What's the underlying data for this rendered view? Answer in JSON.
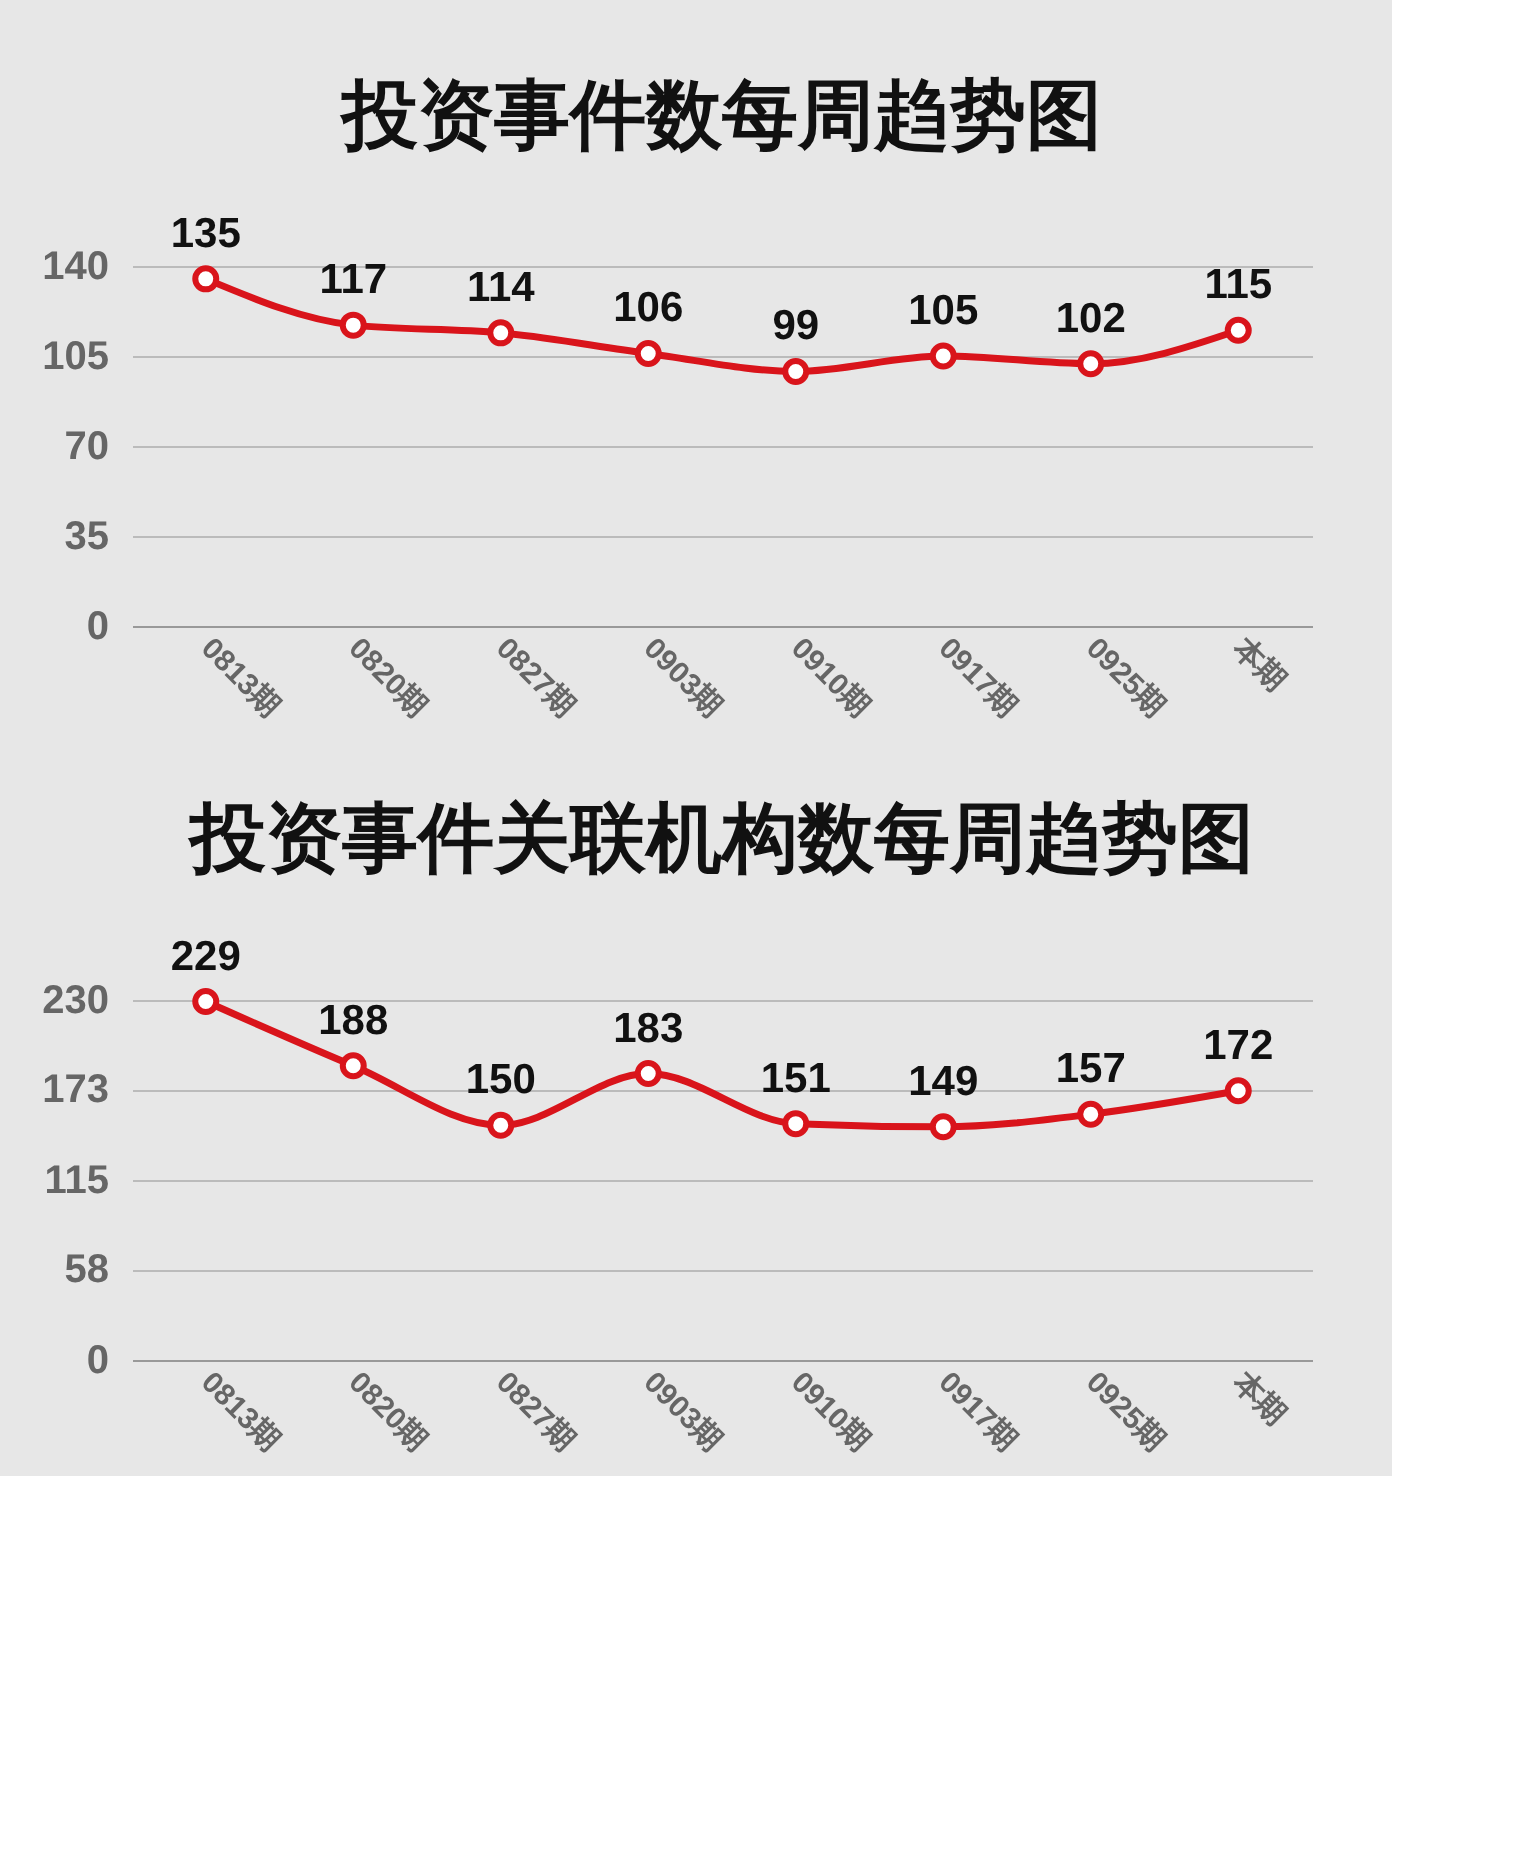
{
  "chart_data": [
    {
      "type": "line",
      "title": "投资事件数每周趋势图",
      "categories": [
        "0813期",
        "0820期",
        "0827期",
        "0903期",
        "0910期",
        "0917期",
        "0925期",
        "本期"
      ],
      "series": [
        {
          "color": "#d9141b",
          "values": [
            135,
            117,
            114,
            106,
            99,
            105,
            102,
            115
          ]
        }
      ],
      "ylim": [
        0,
        140
      ],
      "yticks": [
        0,
        35,
        70,
        105,
        140
      ],
      "grid": "y",
      "data_labels": true,
      "marker": "circle",
      "line_style": "solid"
    },
    {
      "type": "line",
      "title": "投资事件关联机构数每周趋势图",
      "categories": [
        "0813期",
        "0820期",
        "0827期",
        "0903期",
        "0910期",
        "0917期",
        "0925期",
        "本期"
      ],
      "series": [
        {
          "color": "#d9141b",
          "values": [
            229,
            188,
            150,
            183,
            151,
            149,
            157,
            172
          ]
        }
      ],
      "ylim": [
        0,
        230
      ],
      "yticks": [
        0,
        58,
        115,
        173,
        230
      ],
      "grid": "y",
      "data_labels": true,
      "marker": "circle",
      "line_style": "solid"
    }
  ]
}
